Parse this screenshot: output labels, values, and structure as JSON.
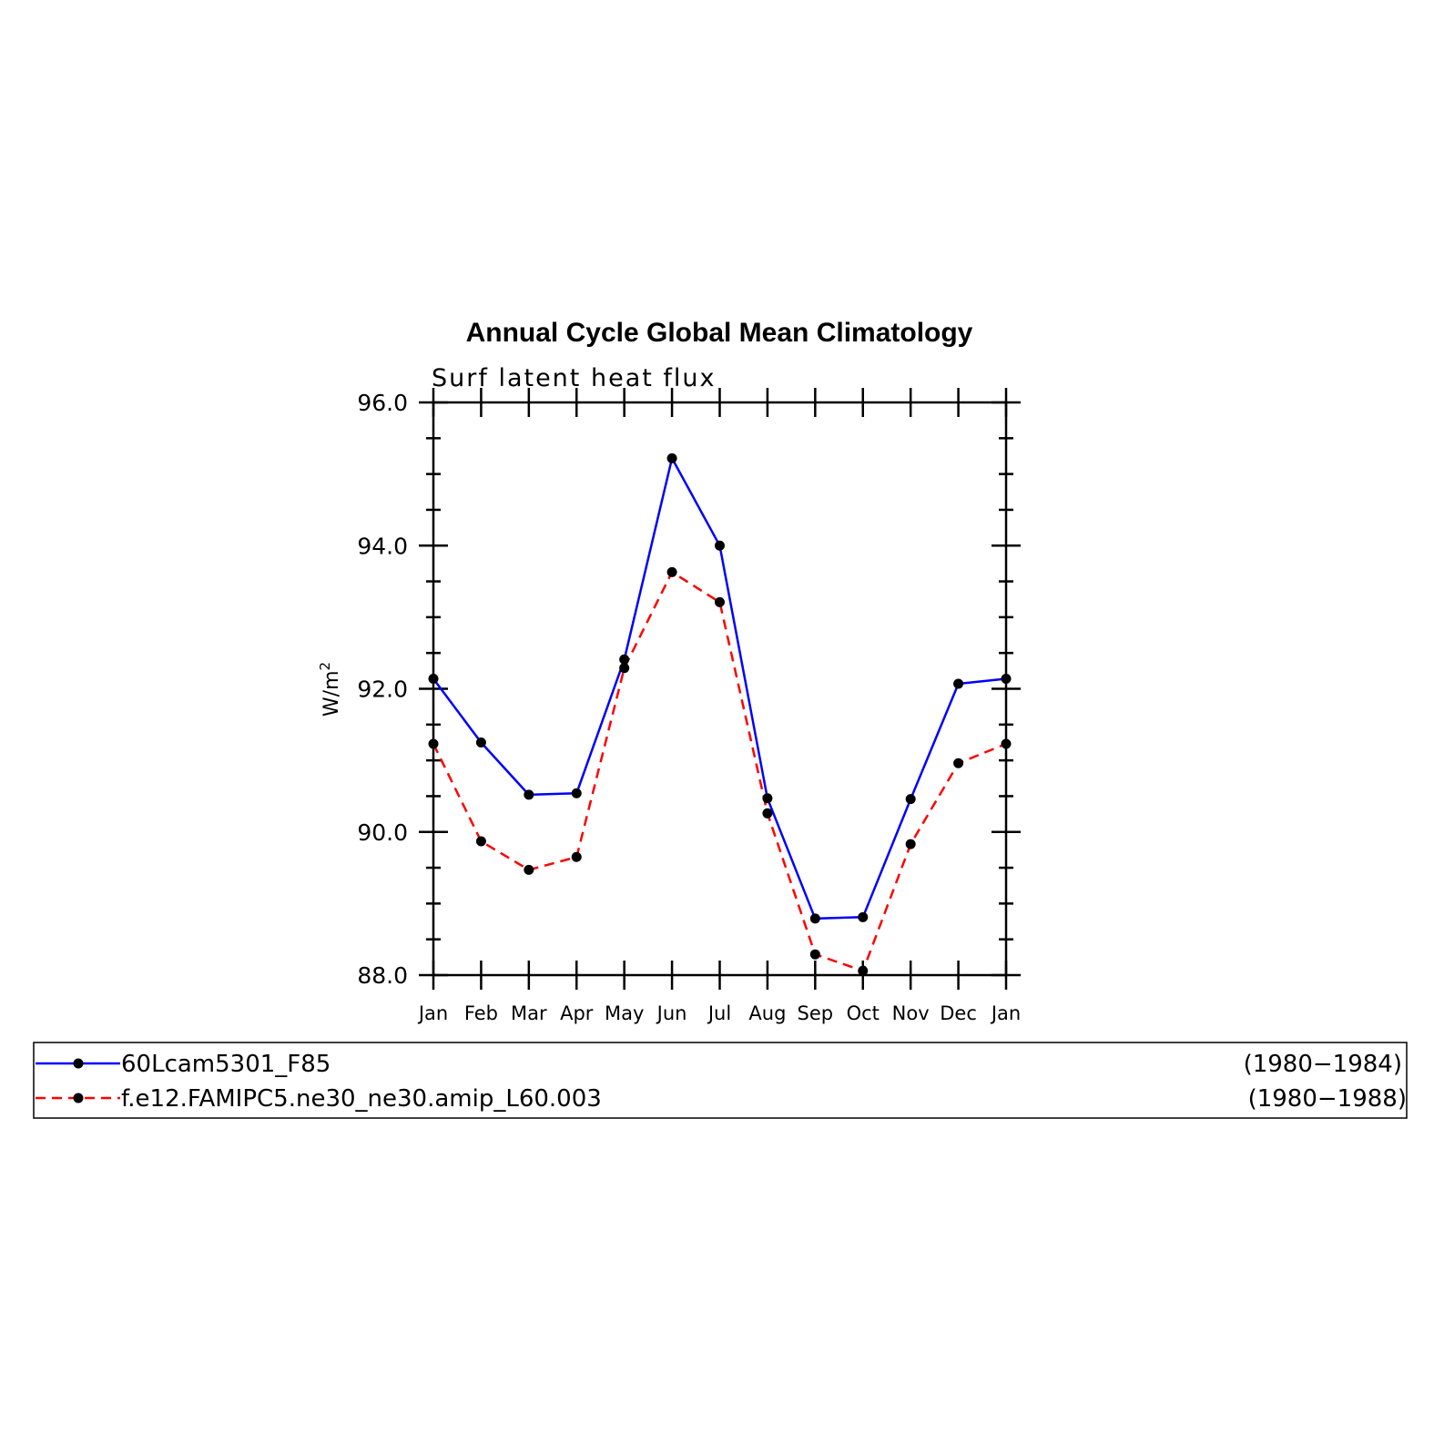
{
  "chart_data": {
    "type": "line",
    "title": "Annual Cycle Global Mean Climatology",
    "subtitle": "Surf latent heat flux",
    "ylabel": "W/m",
    "ylabel_superscript": "2",
    "ylim": [
      88.0,
      96.0
    ],
    "yticks": [
      88.0,
      90.0,
      92.0,
      94.0,
      96.0
    ],
    "ytick_labels": [
      "88.0",
      "90.0",
      "92.0",
      "94.0",
      "96.0"
    ],
    "categories": [
      "Jan",
      "Feb",
      "Mar",
      "Apr",
      "May",
      "Jun",
      "Jul",
      "Aug",
      "Sep",
      "Oct",
      "Nov",
      "Dec",
      "Jan"
    ],
    "series": [
      {
        "name": "60Lcam5301_F85",
        "period": "(1980−1984)",
        "color": "#0000ff",
        "style": "solid",
        "values": [
          92.14,
          91.25,
          90.52,
          90.54,
          92.41,
          95.22,
          94.0,
          90.47,
          88.79,
          88.81,
          90.46,
          92.07,
          92.14
        ]
      },
      {
        "name": "f.e12.FAMIPC5.ne30_ne30.amip_L60.003",
        "period": "(1980−1988)",
        "color": "#ff0000",
        "style": "dashed",
        "values": [
          91.23,
          89.87,
          89.47,
          89.65,
          92.29,
          93.63,
          93.21,
          90.26,
          88.29,
          88.06,
          89.83,
          90.96,
          91.23
        ]
      }
    ],
    "marker_color": "#000000",
    "grid": false,
    "legend_placement": "bottom"
  }
}
